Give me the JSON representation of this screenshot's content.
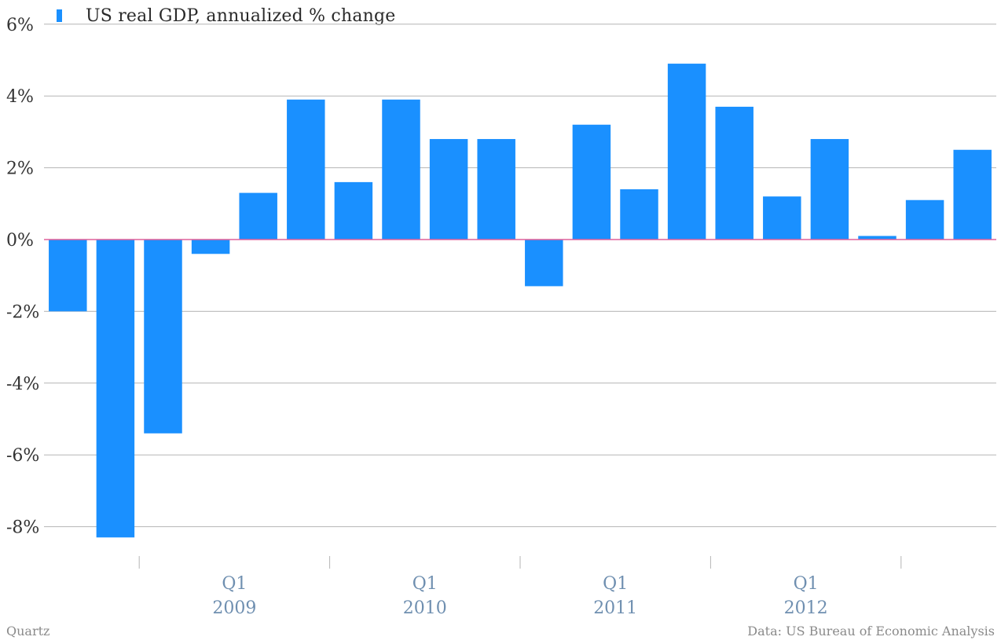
{
  "chart_data": {
    "type": "bar",
    "legend": {
      "label": "US real GDP, annualized % change",
      "placement": "top-left"
    },
    "series": [
      {
        "name": "US real GDP, annualized % change",
        "color": "#1a90ff",
        "values": [
          -2.0,
          -8.3,
          -5.4,
          -0.4,
          1.3,
          3.9,
          1.6,
          3.9,
          2.8,
          2.8,
          -1.3,
          3.2,
          1.4,
          4.9,
          3.7,
          1.2,
          2.8,
          0.1,
          1.1,
          2.5
        ]
      }
    ],
    "y_ticks": [
      {
        "value": 6,
        "label": "6%"
      },
      {
        "value": 4,
        "label": "4%"
      },
      {
        "value": 2,
        "label": "2%"
      },
      {
        "value": 0,
        "label": "0%"
      },
      {
        "value": -2,
        "label": "-2%"
      },
      {
        "value": -4,
        "label": "-4%"
      },
      {
        "value": -6,
        "label": "-6%"
      },
      {
        "value": -8,
        "label": "-8%"
      }
    ],
    "ylim": [
      -9,
      6
    ],
    "x_tick_boundaries": [
      2,
      6,
      10,
      14,
      18
    ],
    "x_labels": [
      {
        "bar_index": 4,
        "quarter": "Q1",
        "year": "2009"
      },
      {
        "bar_index": 8,
        "quarter": "Q1",
        "year": "2010"
      },
      {
        "bar_index": 12,
        "quarter": "Q1",
        "year": "2011"
      },
      {
        "bar_index": 16,
        "quarter": "Q1",
        "year": "2012"
      }
    ],
    "grid": true,
    "zero_line_color": "#e0609a",
    "grid_color": "#b5b5b5",
    "tick_label_color": "#333333",
    "x_label_color": "#6f8fb0"
  },
  "footer": {
    "source_left": "Quartz",
    "source_right": "Data: US Bureau of Economic Analysis"
  }
}
